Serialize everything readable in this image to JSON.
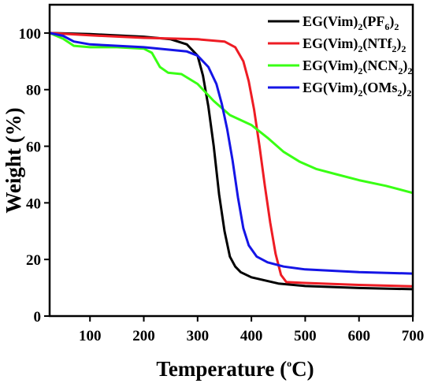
{
  "chart_data": {
    "type": "line",
    "title": "",
    "xlabel_main": "Temperature (",
    "xlabel_sup": "o",
    "xlabel_end": "C)",
    "ylabel": "Weight (%)",
    "xlim": [
      25,
      700
    ],
    "ylim": [
      0,
      110
    ],
    "xticks": [
      100,
      200,
      300,
      400,
      500,
      600,
      700
    ],
    "yticks": [
      0,
      20,
      40,
      60,
      80,
      100
    ],
    "legend_position": "top-right",
    "series": [
      {
        "name": "EG(Vim)2(PF6)2",
        "legend_parts": [
          {
            "t": "EG(Vim)",
            "sub": false
          },
          {
            "t": "2",
            "sub": true
          },
          {
            "t": "(PF",
            "sub": false
          },
          {
            "t": "6",
            "sub": true
          },
          {
            "t": ")",
            "sub": false
          },
          {
            "t": "2",
            "sub": true
          }
        ],
        "color": "#000000",
        "points": [
          [
            25,
            100
          ],
          [
            100,
            99.6
          ],
          [
            200,
            98.7
          ],
          [
            250,
            97.8
          ],
          [
            280,
            96
          ],
          [
            300,
            92
          ],
          [
            310,
            85
          ],
          [
            320,
            74
          ],
          [
            330,
            60
          ],
          [
            340,
            43
          ],
          [
            350,
            30
          ],
          [
            360,
            21
          ],
          [
            370,
            17.5
          ],
          [
            380,
            15.5
          ],
          [
            400,
            13.7
          ],
          [
            450,
            11.5
          ],
          [
            500,
            10.6
          ],
          [
            600,
            9.9
          ],
          [
            700,
            9.5
          ]
        ]
      },
      {
        "name": "EG(Vim)2(NTf2)2",
        "legend_parts": [
          {
            "t": "EG(Vim)",
            "sub": false
          },
          {
            "t": "2",
            "sub": true
          },
          {
            "t": "(NTf",
            "sub": false
          },
          {
            "t": "2",
            "sub": true
          },
          {
            "t": ")",
            "sub": false
          },
          {
            "t": "2",
            "sub": true
          }
        ],
        "color": "#ee1c24",
        "points": [
          [
            25,
            100
          ],
          [
            100,
            99.2
          ],
          [
            200,
            98.3
          ],
          [
            300,
            97.8
          ],
          [
            350,
            97
          ],
          [
            370,
            95
          ],
          [
            385,
            90
          ],
          [
            395,
            83
          ],
          [
            405,
            73
          ],
          [
            415,
            60
          ],
          [
            425,
            46
          ],
          [
            435,
            33
          ],
          [
            445,
            22
          ],
          [
            455,
            14.5
          ],
          [
            465,
            12
          ],
          [
            500,
            11.7
          ],
          [
            600,
            11
          ],
          [
            700,
            10.5
          ]
        ]
      },
      {
        "name": "EG(Vim)2(NCN2)2",
        "legend_parts": [
          {
            "t": "EG(Vim)",
            "sub": false
          },
          {
            "t": "2",
            "sub": true
          },
          {
            "t": "(NCN",
            "sub": false
          },
          {
            "t": "2",
            "sub": true
          },
          {
            "t": ")",
            "sub": false
          },
          {
            "t": "2",
            "sub": true
          }
        ],
        "color": "#39ff14",
        "points": [
          [
            25,
            100
          ],
          [
            50,
            98
          ],
          [
            70,
            95.5
          ],
          [
            100,
            95
          ],
          [
            150,
            95
          ],
          [
            200,
            94.5
          ],
          [
            215,
            93
          ],
          [
            230,
            88
          ],
          [
            245,
            86
          ],
          [
            270,
            85.5
          ],
          [
            300,
            82
          ],
          [
            330,
            76
          ],
          [
            360,
            71
          ],
          [
            400,
            67.5
          ],
          [
            430,
            63
          ],
          [
            460,
            58
          ],
          [
            490,
            54.5
          ],
          [
            520,
            52
          ],
          [
            560,
            50
          ],
          [
            600,
            48
          ],
          [
            650,
            46
          ],
          [
            700,
            43.5
          ]
        ]
      },
      {
        "name": "EG(Vim)2(OMs2)2",
        "legend_parts": [
          {
            "t": "EG(Vim)",
            "sub": false
          },
          {
            "t": "2",
            "sub": true
          },
          {
            "t": "(OMs",
            "sub": false
          },
          {
            "t": "2",
            "sub": true
          },
          {
            "t": ")",
            "sub": false
          },
          {
            "t": "2",
            "sub": true
          }
        ],
        "color": "#1515e6",
        "points": [
          [
            25,
            100
          ],
          [
            50,
            99
          ],
          [
            70,
            97
          ],
          [
            100,
            96
          ],
          [
            200,
            95
          ],
          [
            280,
            93.5
          ],
          [
            300,
            92
          ],
          [
            320,
            88
          ],
          [
            335,
            82
          ],
          [
            345,
            75
          ],
          [
            355,
            66
          ],
          [
            365,
            55
          ],
          [
            375,
            42
          ],
          [
            385,
            31
          ],
          [
            395,
            25
          ],
          [
            410,
            21
          ],
          [
            430,
            19
          ],
          [
            460,
            17.5
          ],
          [
            500,
            16.5
          ],
          [
            600,
            15.5
          ],
          [
            700,
            15
          ]
        ]
      }
    ]
  }
}
